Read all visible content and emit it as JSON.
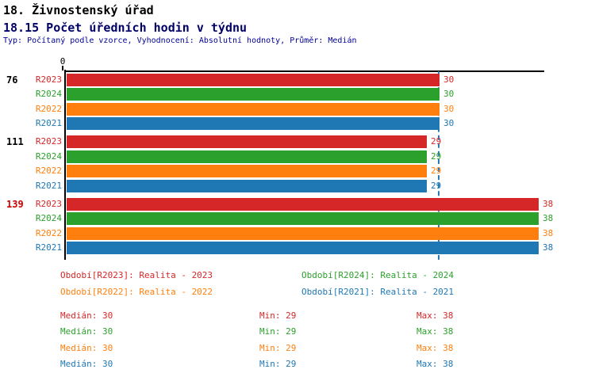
{
  "header": {
    "title": "18. Živnostenský úřad",
    "subtitle": "18.15 Počet úředních hodin v týdnu",
    "meta": "Typ: Počítaný podle vzorce, Vyhodnocení: Absolutní hodnoty, Průměr: Medián"
  },
  "chart_data": {
    "type": "bar",
    "orientation": "horizontal",
    "value_axis": {
      "origin_label": "0",
      "range": [
        0,
        38.5
      ],
      "grid": false
    },
    "median_guideline": {
      "value": 30,
      "color": "#2b7bb9",
      "style": "dashed"
    },
    "series_order": [
      "R2023",
      "R2024",
      "R2022",
      "R2021"
    ],
    "series_colors": {
      "R2023": "#d62728",
      "R2024": "#2ca02c",
      "R2022": "#ff7f0e",
      "R2021": "#1f77b4"
    },
    "groups": [
      {
        "label": "76",
        "label_color": "#000000",
        "values": {
          "R2023": 30,
          "R2024": 30,
          "R2022": 30,
          "R2021": 30
        }
      },
      {
        "label": "111",
        "label_color": "#000000",
        "values": {
          "R2023": 29,
          "R2024": 29,
          "R2022": 29,
          "R2021": 29
        }
      },
      {
        "label": "139",
        "label_color": "#cc0000",
        "values": {
          "R2023": 38,
          "R2024": 38,
          "R2022": 38,
          "R2021": 38
        }
      }
    ]
  },
  "legend": {
    "entries": [
      {
        "label": "Období[R2023]: Realita - 2023",
        "color": "#d62728",
        "row": 0,
        "col": 0
      },
      {
        "label": "Období[R2024]: Realita - 2024",
        "color": "#2ca02c",
        "row": 0,
        "col": 1
      },
      {
        "label": "Období[R2022]: Realita - 2022",
        "color": "#ff7f0e",
        "row": 1,
        "col": 0
      },
      {
        "label": "Období[R2021]: Realita - 2021",
        "color": "#1f77b4",
        "row": 1,
        "col": 1
      }
    ]
  },
  "stats": {
    "rows": [
      {
        "color": "#d62728",
        "median": "Medián: 30",
        "min": "Min: 29",
        "max": "Max: 38"
      },
      {
        "color": "#2ca02c",
        "median": "Medián: 30",
        "min": "Min: 29",
        "max": "Max: 38"
      },
      {
        "color": "#ff7f0e",
        "median": "Medián: 30",
        "min": "Min: 29",
        "max": "Max: 38"
      },
      {
        "color": "#1f77b4",
        "median": "Medián: 30",
        "min": "Min: 29",
        "max": "Max: 38"
      }
    ]
  }
}
